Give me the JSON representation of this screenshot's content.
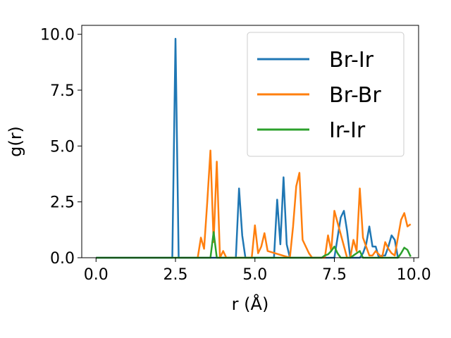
{
  "chart_data": {
    "type": "line",
    "title": "",
    "xlabel": "r (Å)",
    "ylabel": "g(r)",
    "xlim": [
      -0.45,
      10.15
    ],
    "ylim": [
      0,
      10.4
    ],
    "xticks": [
      0,
      2.5,
      5,
      7.5,
      10
    ],
    "xtick_labels": [
      "0.0",
      "2.5",
      "5.0",
      "7.5",
      "10.0"
    ],
    "yticks": [
      0,
      2.5,
      5,
      7.5,
      10
    ],
    "ytick_labels": [
      "0.0",
      "2.5",
      "5.0",
      "7.5",
      "10.0"
    ],
    "grid": false,
    "legend": "top-right",
    "series": [
      {
        "name": "Br-Ir",
        "color": "#1f77b4",
        "x": [
          0,
          2.4,
          2.5,
          2.6,
          4.4,
          4.5,
          4.6,
          4.7,
          5.6,
          5.7,
          5.8,
          5.9,
          6.0,
          6.1,
          7.5,
          7.6,
          7.7,
          7.8,
          7.9,
          8.0,
          8.3,
          8.4,
          8.5,
          8.6,
          8.7,
          8.8,
          8.9,
          9.0,
          9.1,
          9.2,
          9.3,
          9.4,
          9.5
        ],
        "y": [
          0,
          0,
          9.8,
          0,
          0,
          3.1,
          1.0,
          0,
          0,
          2.6,
          0.6,
          3.6,
          0.6,
          0,
          0,
          0.9,
          1.8,
          2.1,
          1.2,
          0,
          0,
          0.2,
          0.6,
          1.4,
          0.5,
          0.5,
          0,
          0.1,
          0.1,
          0.5,
          1.0,
          0.8,
          0
        ]
      },
      {
        "name": "Br-Br",
        "color": "#ff7f0e",
        "x": [
          3.2,
          3.3,
          3.4,
          3.5,
          3.6,
          3.7,
          3.8,
          3.9,
          4.0,
          4.1,
          4.9,
          5.0,
          5.1,
          5.2,
          5.3,
          5.4,
          6.1,
          6.2,
          6.3,
          6.4,
          6.5,
          6.6,
          6.7,
          6.8,
          7.2,
          7.3,
          7.4,
          7.5,
          7.9,
          8.0,
          8.1,
          8.2,
          8.3,
          8.4,
          8.5,
          8.6,
          8.7,
          8.8,
          9.0,
          9.1,
          9.2,
          9.3,
          9.4,
          9.5,
          9.6,
          9.7,
          9.8,
          9.9
        ],
        "y": [
          0,
          0.9,
          0.4,
          2.5,
          4.8,
          0.7,
          4.3,
          0,
          0.3,
          0,
          0,
          1.45,
          0.2,
          0.5,
          1.1,
          0.3,
          0,
          1.4,
          3.2,
          3.8,
          0.8,
          0.5,
          0.2,
          0,
          0,
          1.0,
          0.3,
          2.1,
          0,
          0,
          0.8,
          0.3,
          3.1,
          0.9,
          0.5,
          0.1,
          0.1,
          0.3,
          0,
          0.7,
          0.4,
          0.2,
          0.1,
          0.9,
          1.7,
          2.0,
          1.4,
          1.5
        ]
      },
      {
        "name": "Ir-Ir",
        "color": "#2ca02c",
        "x": [
          0,
          3.5,
          3.6,
          3.7,
          3.8,
          3.9,
          7.0,
          7.1,
          7.2,
          7.3,
          7.4,
          7.5,
          7.6,
          7.7,
          8.0,
          8.1,
          8.2,
          8.3,
          8.4,
          9.5,
          9.6,
          9.7,
          9.8,
          9.9
        ],
        "y": [
          0,
          0,
          0,
          1.15,
          0,
          0,
          0,
          0,
          0.1,
          0.15,
          0.3,
          0.5,
          0.2,
          0,
          0,
          0.1,
          0.2,
          0.3,
          0,
          0,
          0.2,
          0.45,
          0.35,
          0.05
        ]
      }
    ]
  }
}
